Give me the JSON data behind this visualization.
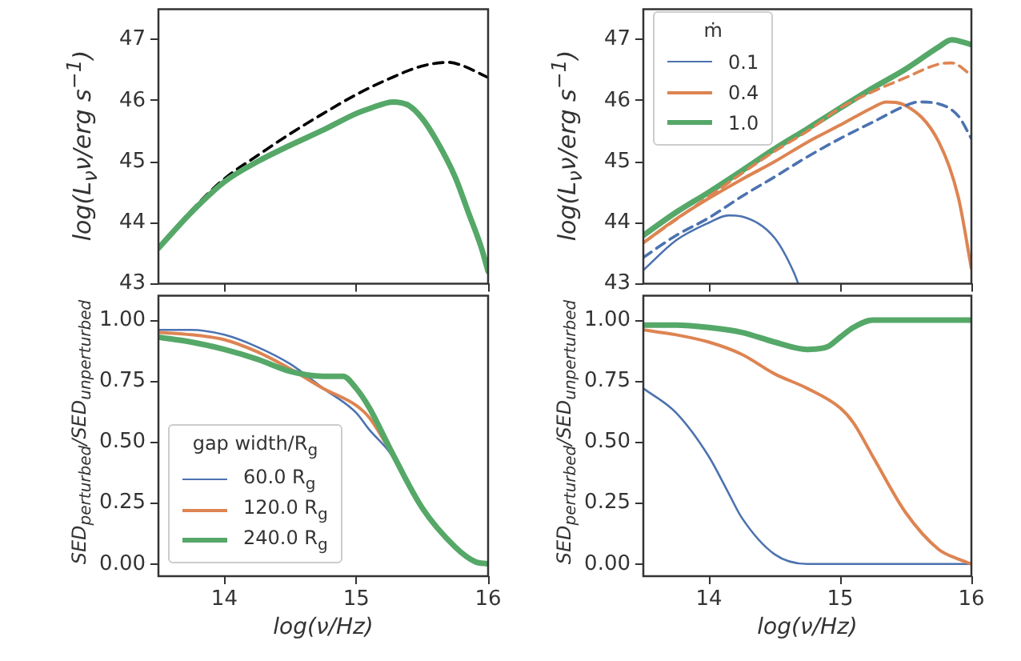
{
  "chart_data": [
    {
      "type": "line",
      "ylabel": "log(L$_{ν}$ν/erg s$^{−1}$)",
      "xlim": [
        13.5,
        16
      ],
      "xticks": [
        14,
        15,
        16
      ],
      "ylim": [
        43,
        47.5
      ],
      "yticks": [
        43,
        44,
        45,
        46,
        47
      ],
      "tick_labels": "y",
      "series": [
        {
          "color": "#000000",
          "line_style": "dashed",
          "x": [
            13.5,
            13.75,
            14,
            14.25,
            14.5,
            14.75,
            15,
            15.25,
            15.5,
            15.7,
            15.8,
            16
          ],
          "values": [
            43.58,
            44.2,
            44.72,
            45.1,
            45.46,
            45.79,
            46.1,
            46.36,
            46.57,
            46.63,
            46.58,
            46.38
          ]
        },
        {
          "color": "#55a868",
          "line_style": "solid",
          "x": [
            13.5,
            13.75,
            14,
            14.25,
            14.5,
            14.75,
            15,
            15.1,
            15.28,
            15.4,
            15.5,
            15.6,
            15.75,
            15.85,
            15.95,
            16
          ],
          "values": [
            43.58,
            44.17,
            44.67,
            45.0,
            45.27,
            45.52,
            45.79,
            45.87,
            45.98,
            45.92,
            45.71,
            45.38,
            44.75,
            44.17,
            43.58,
            43.2
          ]
        }
      ]
    },
    {
      "type": "line",
      "ylabel": "log(L$_{ν}$ν/erg s$^{−1}$)",
      "xlim": [
        13.5,
        16
      ],
      "xticks": [
        14,
        15,
        16
      ],
      "ylim": [
        43,
        47.5
      ],
      "yticks": [
        43,
        44,
        45,
        46,
        47
      ],
      "tick_labels": "y",
      "legend": "top left",
      "legend_title": "ṁ",
      "series": [
        {
          "name": "0.1",
          "color": "#4c72b0",
          "line_style": "solid",
          "x": [
            13.5,
            13.75,
            14,
            14.15,
            14.25,
            14.5,
            14.65,
            14.68
          ],
          "values": [
            43.22,
            43.71,
            44.0,
            44.12,
            44.1,
            43.75,
            43.17,
            43.0
          ]
        },
        {
          "name": "0.4",
          "color": "#dd8452",
          "line_style": "solid",
          "x": [
            13.5,
            13.75,
            14,
            14.25,
            14.5,
            14.75,
            15,
            15.25,
            15.35,
            15.5,
            15.75,
            15.9,
            16
          ],
          "values": [
            43.67,
            44.06,
            44.4,
            44.71,
            45.0,
            45.32,
            45.6,
            45.89,
            45.98,
            45.92,
            45.33,
            44.42,
            43.25
          ]
        },
        {
          "name": "1.0",
          "color": "#55a868",
          "line_style": "solid",
          "x": [
            13.5,
            13.75,
            14,
            14.25,
            14.5,
            14.75,
            15,
            15.25,
            15.5,
            15.75,
            15.85,
            16
          ],
          "values": [
            43.79,
            44.17,
            44.5,
            44.85,
            45.21,
            45.54,
            45.88,
            46.21,
            46.52,
            46.88,
            47.0,
            46.92
          ]
        },
        {
          "color": "#dd8452",
          "line_style": "dashed",
          "x": [
            13.5,
            14,
            14.5,
            14.75,
            15,
            15.25,
            15.5,
            15.75,
            15.85,
            16
          ],
          "values": [
            43.67,
            44.43,
            45.17,
            45.5,
            45.88,
            46.15,
            46.38,
            46.6,
            46.62,
            46.42
          ]
        },
        {
          "color": "#4c72b0",
          "line_style": "dashed",
          "x": [
            13.5,
            13.75,
            14,
            14.25,
            14.5,
            14.75,
            15,
            15.25,
            15.5,
            15.6,
            15.75,
            15.9,
            16
          ],
          "values": [
            43.43,
            43.79,
            44.08,
            44.43,
            44.75,
            45.08,
            45.38,
            45.65,
            45.92,
            45.98,
            45.95,
            45.75,
            45.38
          ]
        }
      ]
    },
    {
      "type": "line",
      "ylabel": "SED$_{perturbed}$/SED$_{unperturbed}$",
      "xlabel": "log(ν/Hz)",
      "xlim": [
        13.5,
        16
      ],
      "xticks": [
        14,
        15,
        16
      ],
      "ylim": [
        -0.05,
        1.1
      ],
      "yticks": [
        {
          "value": 0,
          "label": "0.00"
        },
        {
          "value": 0.25,
          "label": "0.25"
        },
        {
          "value": 0.5,
          "label": "0.50"
        },
        {
          "value": 0.75,
          "label": "0.75"
        },
        {
          "value": 1,
          "label": "1.00"
        }
      ],
      "legend": "bottom left",
      "legend_title": "gap width/R$_{g}$",
      "series": [
        {
          "name": "60.0 R$_{g}$",
          "color": "#4c72b0",
          "line_style": "solid",
          "x": [
            13.5,
            13.75,
            14,
            14.25,
            14.5,
            14.75,
            15,
            15.1,
            15.25,
            15.5
          ],
          "values": [
            0.96,
            0.96,
            0.94,
            0.89,
            0.82,
            0.72,
            0.62,
            0.55,
            0.46,
            0.23
          ]
        },
        {
          "name": "120.0 R$_{g}$",
          "color": "#dd8452",
          "line_style": "solid",
          "x": [
            13.5,
            13.75,
            14,
            14.25,
            14.5,
            14.75,
            15,
            15.1,
            15.25,
            15.5
          ],
          "values": [
            0.95,
            0.94,
            0.92,
            0.87,
            0.8,
            0.72,
            0.65,
            0.6,
            0.47,
            0.23
          ]
        },
        {
          "name": "240.0 R$_{g}$",
          "color": "#55a868",
          "line_style": "solid",
          "x": [
            13.5,
            13.75,
            14,
            14.25,
            14.5,
            14.75,
            14.9,
            15,
            15.1,
            15.25,
            15.5,
            15.75,
            15.9,
            16
          ],
          "values": [
            0.93,
            0.91,
            0.88,
            0.84,
            0.79,
            0.77,
            0.77,
            0.72,
            0.64,
            0.48,
            0.23,
            0.07,
            0.01,
            0.0
          ]
        }
      ]
    },
    {
      "type": "line",
      "ylabel": "SED$_{perturbed}$/SED$_{unperturbed}$",
      "xlabel": "log(ν/Hz)",
      "xlim": [
        13.5,
        16
      ],
      "xticks": [
        14,
        15,
        16
      ],
      "ylim": [
        -0.05,
        1.1
      ],
      "yticks": [
        {
          "value": 0,
          "label": "0.00"
        },
        {
          "value": 0.25,
          "label": "0.25"
        },
        {
          "value": 0.5,
          "label": "0.50"
        },
        {
          "value": 0.75,
          "label": "0.75"
        },
        {
          "value": 1,
          "label": "1.00"
        }
      ],
      "series": [
        {
          "color": "#4c72b0",
          "line_style": "solid",
          "x": [
            13.5,
            13.75,
            14,
            14.15,
            14.25,
            14.5,
            14.75,
            15,
            16
          ],
          "values": [
            0.72,
            0.62,
            0.44,
            0.29,
            0.19,
            0.04,
            0.0,
            0.0,
            0.0
          ]
        },
        {
          "color": "#dd8452",
          "line_style": "solid",
          "x": [
            13.5,
            13.75,
            14,
            14.25,
            14.5,
            14.75,
            15,
            15.1,
            15.25,
            15.5,
            15.75,
            15.9,
            16
          ],
          "values": [
            0.96,
            0.94,
            0.91,
            0.86,
            0.78,
            0.72,
            0.64,
            0.58,
            0.44,
            0.21,
            0.06,
            0.02,
            0.0
          ]
        },
        {
          "color": "#55a868",
          "line_style": "solid",
          "x": [
            13.5,
            13.75,
            14,
            14.25,
            14.5,
            14.75,
            14.9,
            15,
            15.1,
            15.25,
            15.5,
            16
          ],
          "values": [
            0.98,
            0.98,
            0.97,
            0.95,
            0.91,
            0.88,
            0.89,
            0.93,
            0.97,
            1.0,
            1.0,
            1.0
          ]
        }
      ]
    }
  ]
}
